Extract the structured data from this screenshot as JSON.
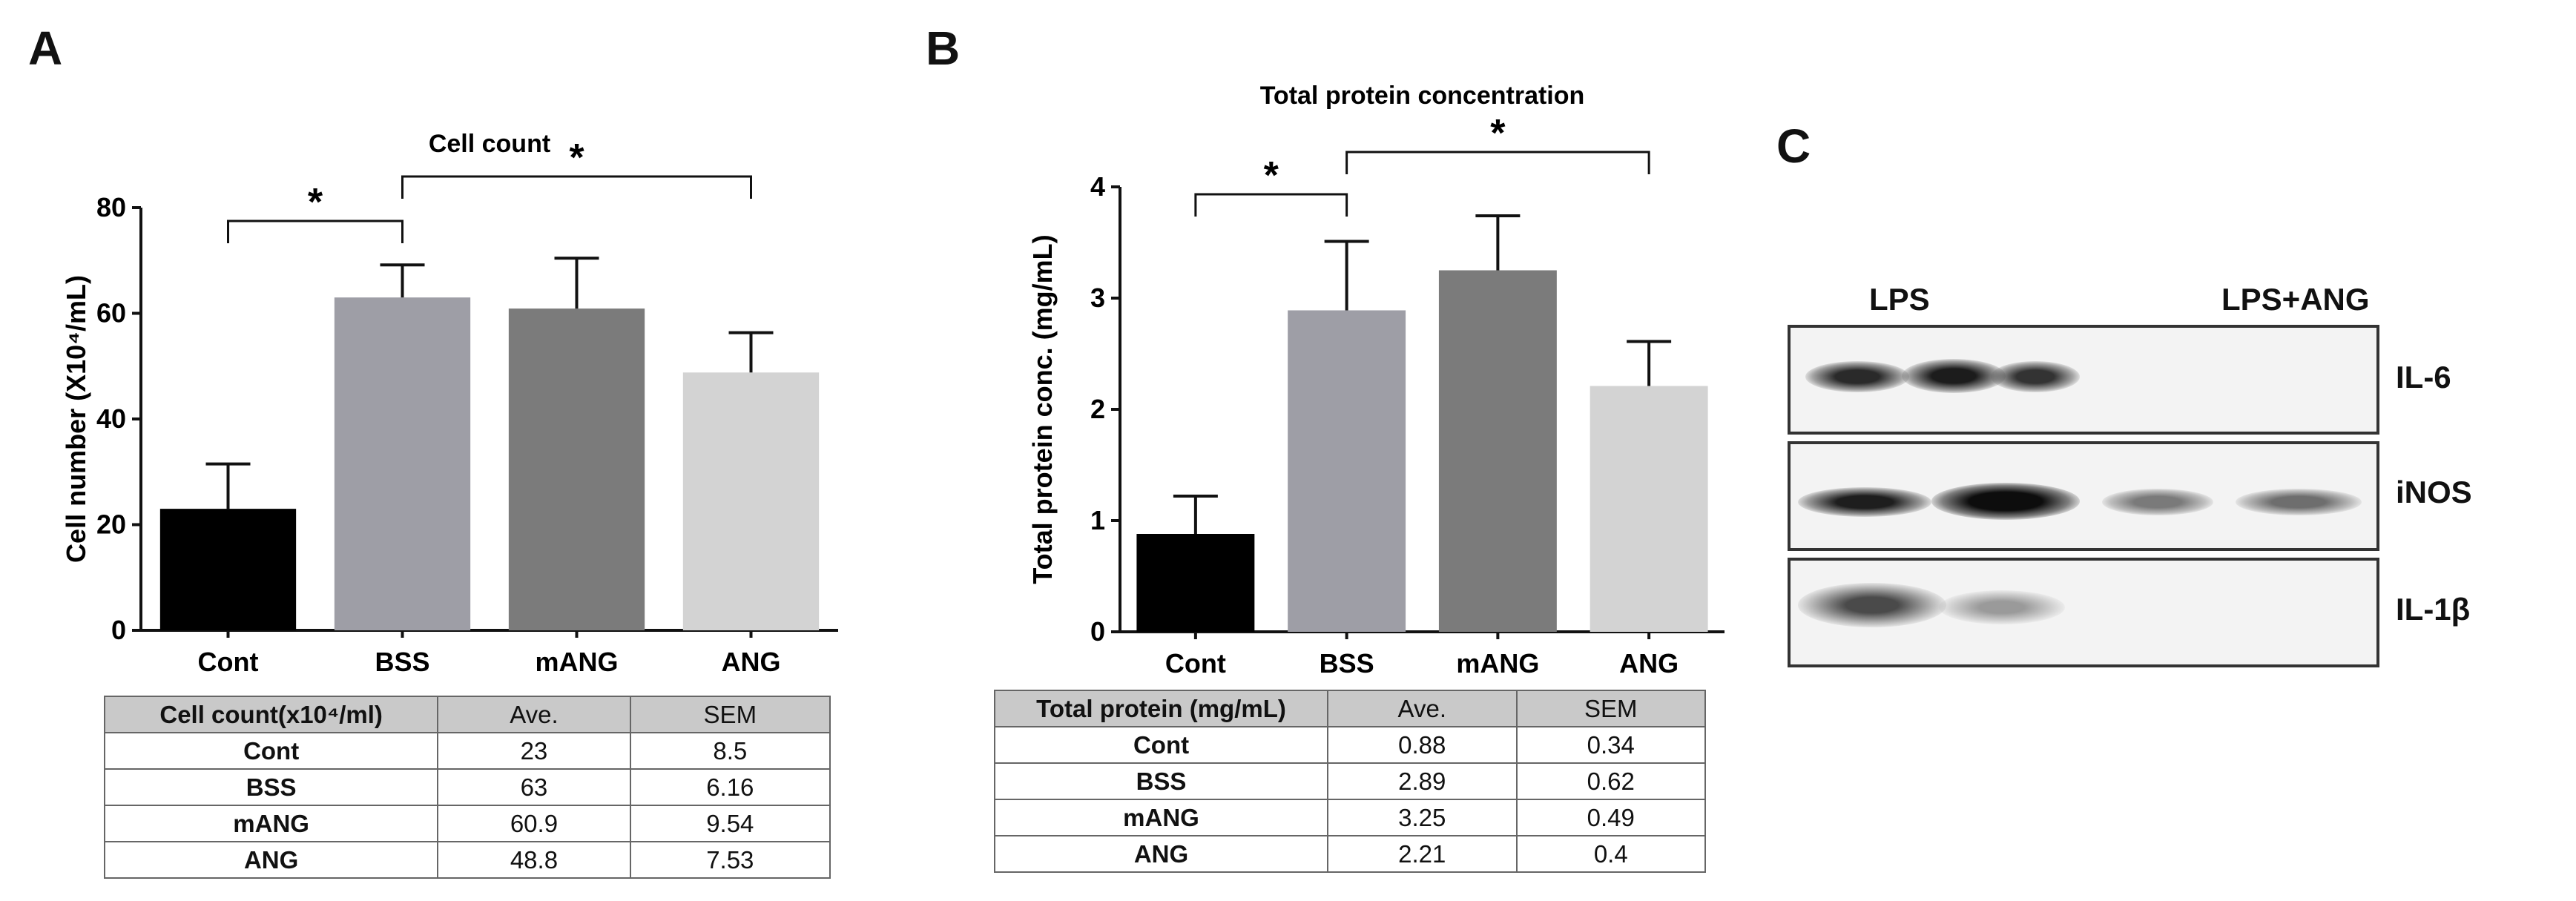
{
  "panels": {
    "a": "A",
    "b": "B",
    "c": "C"
  },
  "chart_data": [
    {
      "type": "bar",
      "title": "Cell count",
      "ylabel": "Cell number (X10⁴/mL)",
      "xlabel": "",
      "categories": [
        "Cont",
        "BSS",
        "mANG",
        "ANG"
      ],
      "values": [
        23,
        63,
        60.9,
        48.8
      ],
      "errors": [
        8.5,
        6.16,
        9.54,
        7.53
      ],
      "colors": [
        "#000000",
        "#9e9ea6",
        "#7b7b7b",
        "#d3d3d3"
      ],
      "ylim": [
        0,
        80
      ],
      "yticks": [
        0,
        20,
        40,
        60,
        80
      ],
      "significance": [
        {
          "from": 0,
          "to": 1,
          "label": "*"
        },
        {
          "from": 1,
          "to": 3,
          "label": "*"
        }
      ]
    },
    {
      "type": "bar",
      "title": "Total protein concentration",
      "ylabel": "Total protein conc. (mg/mL)",
      "xlabel": "",
      "categories": [
        "Cont",
        "BSS",
        "mANG",
        "ANG"
      ],
      "values": [
        0.88,
        2.89,
        3.25,
        2.21
      ],
      "errors": [
        0.34,
        0.62,
        0.49,
        0.4
      ],
      "colors": [
        "#000000",
        "#9e9ea6",
        "#7b7b7b",
        "#d3d3d3"
      ],
      "ylim": [
        0,
        4
      ],
      "yticks": [
        0,
        1,
        2,
        3,
        4
      ],
      "significance": [
        {
          "from": 0,
          "to": 1,
          "label": "*"
        },
        {
          "from": 1,
          "to": 3,
          "label": "*"
        }
      ]
    },
    {
      "type": "table",
      "columns": [
        "Cell count(x10⁴/ml)",
        "Ave.",
        "SEM"
      ],
      "rows": [
        [
          "Cont",
          "23",
          "8.5"
        ],
        [
          "BSS",
          "63",
          "6.16"
        ],
        [
          "mANG",
          "60.9",
          "9.54"
        ],
        [
          "ANG",
          "48.8",
          "7.53"
        ]
      ]
    },
    {
      "type": "table",
      "columns": [
        "Total protein (mg/mL)",
        "Ave.",
        "SEM"
      ],
      "rows": [
        [
          "Cont",
          "0.88",
          "0.34"
        ],
        [
          "BSS",
          "2.89",
          "0.62"
        ],
        [
          "mANG",
          "3.25",
          "0.49"
        ],
        [
          "ANG",
          "2.21",
          "0.4"
        ]
      ]
    }
  ],
  "blot": {
    "groups": [
      "LPS",
      "LPS+ANG"
    ],
    "bands": [
      "IL-6",
      "iNOS",
      "IL-1β"
    ]
  }
}
